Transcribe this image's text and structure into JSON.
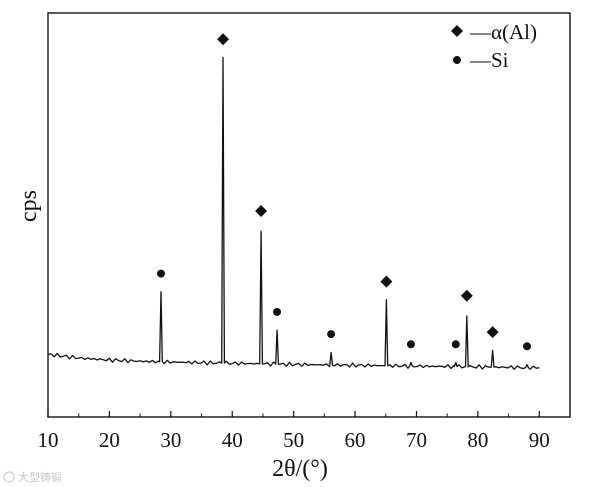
{
  "chart_data": {
    "type": "line",
    "xlabel": "2θ/(°)",
    "ylabel": "cps",
    "xlim": [
      10,
      95
    ],
    "ylim": [
      0,
      100
    ],
    "x_ticks": [
      "10",
      "20",
      "30",
      "40",
      "50",
      "60",
      "70",
      "80",
      "90"
    ],
    "legend": {
      "placement": "top-right",
      "entries": [
        {
          "marker": "diamond",
          "label": "—α(Al)"
        },
        {
          "marker": "circle",
          "label": "—Si"
        }
      ]
    },
    "baseline": {
      "x": [
        10,
        15,
        20,
        25,
        30,
        40,
        50,
        60,
        70,
        80,
        90
      ],
      "y": [
        15.5,
        14.6,
        14.1,
        13.8,
        13.6,
        13.3,
        13.0,
        12.8,
        12.6,
        12.4,
        12.2
      ]
    },
    "peaks": [
      {
        "x": 28.4,
        "y": 31.0,
        "phase": "Si"
      },
      {
        "x": 38.5,
        "y": 89.0,
        "phase": "α(Al)"
      },
      {
        "x": 44.7,
        "y": 46.0,
        "phase": "α(Al)"
      },
      {
        "x": 47.3,
        "y": 21.5,
        "phase": "Si"
      },
      {
        "x": 56.1,
        "y": 16.0,
        "phase": "Si"
      },
      {
        "x": 65.1,
        "y": 29.0,
        "phase": "α(Al)"
      },
      {
        "x": 69.1,
        "y": 13.5,
        "phase": "Si"
      },
      {
        "x": 76.4,
        "y": 13.5,
        "phase": "Si"
      },
      {
        "x": 78.2,
        "y": 25.0,
        "phase": "α(Al)"
      },
      {
        "x": 82.4,
        "y": 16.5,
        "phase": "α(Al)"
      },
      {
        "x": 88.0,
        "y": 13.0,
        "phase": "Si"
      }
    ],
    "markers": [
      {
        "x": 28.4,
        "y": 35.5,
        "phase": "Si"
      },
      {
        "x": 38.5,
        "y": 93.5,
        "phase": "α(Al)"
      },
      {
        "x": 44.7,
        "y": 51.0,
        "phase": "α(Al)"
      },
      {
        "x": 47.3,
        "y": 26.0,
        "phase": "Si"
      },
      {
        "x": 56.1,
        "y": 20.5,
        "phase": "Si"
      },
      {
        "x": 65.1,
        "y": 33.5,
        "phase": "α(Al)"
      },
      {
        "x": 69.1,
        "y": 18.0,
        "phase": "Si"
      },
      {
        "x": 76.4,
        "y": 18.0,
        "phase": "Si"
      },
      {
        "x": 78.2,
        "y": 30.0,
        "phase": "α(Al)"
      },
      {
        "x": 82.4,
        "y": 21.0,
        "phase": "α(Al)"
      },
      {
        "x": 88.0,
        "y": 17.5,
        "phase": "Si"
      }
    ],
    "grid": false,
    "line_color": "#111111",
    "marker_color": "#111111"
  },
  "watermark": "大型铸锻"
}
